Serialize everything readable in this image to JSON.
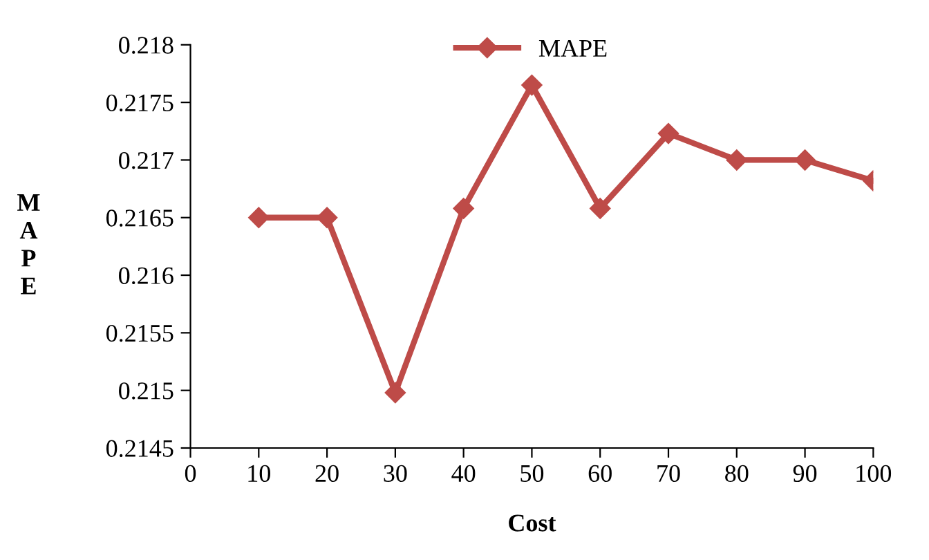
{
  "chart_data": {
    "type": "line",
    "xlabel": "Cost",
    "ylabel": "MAPE",
    "x": [
      10,
      20,
      30,
      40,
      50,
      60,
      70,
      80,
      90,
      100
    ],
    "series": [
      {
        "name": "MAPE",
        "color": "#be4b48",
        "values": [
          0.2165,
          0.2165,
          0.21498,
          0.21658,
          0.21765,
          0.21658,
          0.21723,
          0.217,
          0.217,
          0.21682
        ]
      }
    ],
    "xlim": [
      0,
      100
    ],
    "xticks": [
      0,
      10,
      20,
      30,
      40,
      50,
      60,
      70,
      80,
      90,
      100
    ],
    "ylim": [
      0.2145,
      0.218
    ],
    "yticks": [
      0.2145,
      0.215,
      0.2155,
      0.216,
      0.2165,
      0.217,
      0.2175,
      0.218
    ],
    "marker": "diamond",
    "line_style": "solid",
    "grid": false,
    "legend": "top"
  }
}
